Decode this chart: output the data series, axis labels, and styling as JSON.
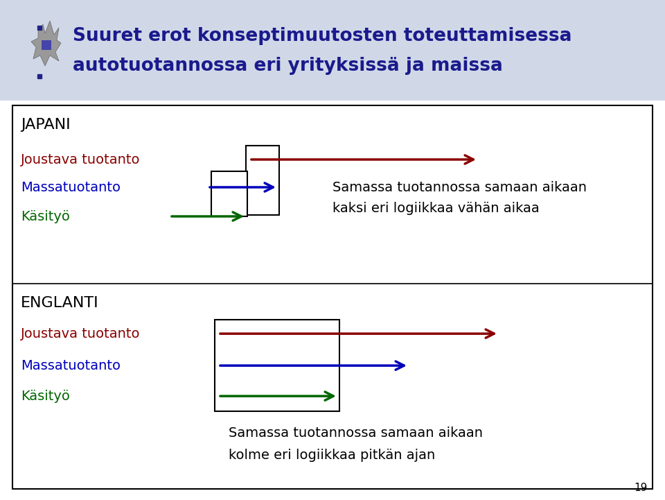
{
  "bg_color": "#ffffff",
  "header_bg": "#d0d8e8",
  "title_line1": "Suuret erot konseptimuutosten toteuttamisessa",
  "title_line2": "autotuotannossa eri yrityksissä ja maissa",
  "title_color": "#1a1a8c",
  "title_fontsize": 19,
  "section1_label": "JAPANI",
  "section2_label": "ENGLANTI",
  "section_fontsize": 16,
  "row_labels": [
    "Joustava tuotanto",
    "Massatuotanto",
    "Käsityö"
  ],
  "row_colors": [
    "#8b0000",
    "#0000bb",
    "#006600"
  ],
  "row_fontsize": 14,
  "japani_comment_line1": "Samassa tuotannossa samaan aikaan",
  "japani_comment_line2": "kaksi eri logiikkaa vähän aikaa",
  "englanti_comment_line1": "Samassa tuotannossa samaan aikaan",
  "englanti_comment_line2": "kolme eri logiikkaa pitkän ajan",
  "comment_fontsize": 14,
  "page_number": "19"
}
